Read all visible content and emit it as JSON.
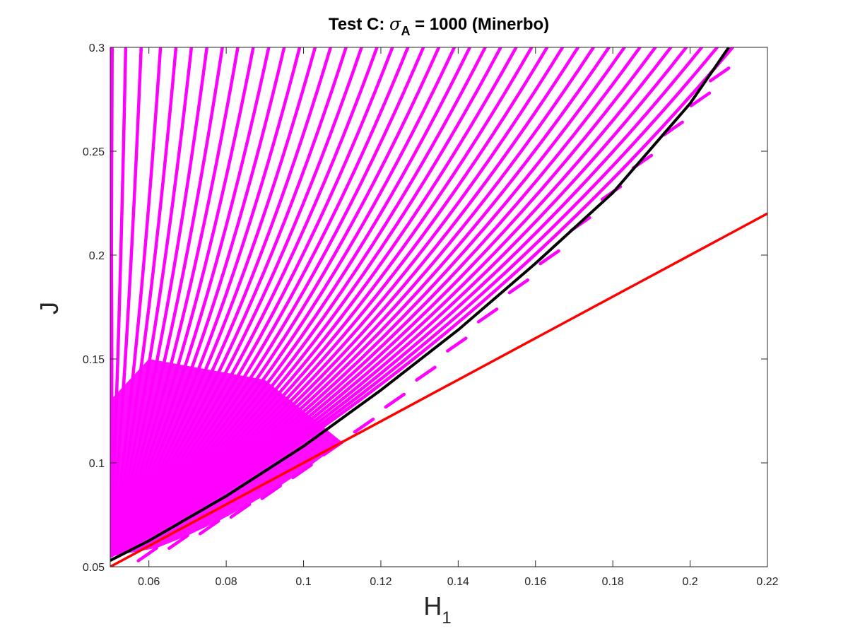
{
  "chart_data": {
    "type": "line",
    "title": {
      "prefix": "Test C: ",
      "symbol": "σ",
      "subscript": "A",
      "suffix": " = 1000 (Minerbo)"
    },
    "xlabel": {
      "main": "H",
      "sub": "1"
    },
    "ylabel": "J",
    "xlim": [
      0.05,
      0.22
    ],
    "ylim": [
      0.05,
      0.3
    ],
    "xticks": [
      0.06,
      0.08,
      0.1,
      0.12,
      0.14,
      0.16,
      0.18,
      0.2,
      0.22
    ],
    "xtick_labels": [
      "0.06",
      "0.08",
      "0.1",
      "0.12",
      "0.14",
      "0.16",
      "0.18",
      "0.2",
      "0.22"
    ],
    "yticks": [
      0.05,
      0.1,
      0.15,
      0.2,
      0.25,
      0.3
    ],
    "ytick_labels": [
      "0.05",
      "0.1",
      "0.15",
      "0.2",
      "0.25",
      "0.3"
    ],
    "grid": false,
    "colors": {
      "scatter": "#ff00ff",
      "curve": "#000000",
      "line": "#ff0000",
      "axes": "#262626"
    },
    "series": [
      {
        "kind": "line",
        "color": "#ff0000",
        "x": [
          0.05,
          0.22
        ],
        "y": [
          0.05,
          0.22
        ]
      },
      {
        "kind": "curve",
        "color": "#000000",
        "x": [
          0.05,
          0.06,
          0.08,
          0.1,
          0.12,
          0.14,
          0.16,
          0.18,
          0.2,
          0.21
        ],
        "y": [
          0.053,
          0.0625,
          0.084,
          0.108,
          0.135,
          0.164,
          0.196,
          0.23,
          0.273,
          0.3
        ]
      },
      {
        "kind": "scatter-fan",
        "color": "#ff00ff",
        "tip_x": 0.05,
        "tip_y": 0.055,
        "end_x": [
          0.0505,
          0.054,
          0.058,
          0.063,
          0.067,
          0.071,
          0.075,
          0.079,
          0.083,
          0.087,
          0.091,
          0.095,
          0.099,
          0.103,
          0.107,
          0.111,
          0.115,
          0.119,
          0.123,
          0.127,
          0.131,
          0.135,
          0.139,
          0.143,
          0.147,
          0.151,
          0.155,
          0.159,
          0.163,
          0.167,
          0.171,
          0.175,
          0.179,
          0.183,
          0.187,
          0.191,
          0.195,
          0.199,
          0.203,
          0.207,
          0.211
        ],
        "end_y": [
          0.3,
          0.3,
          0.3,
          0.3,
          0.3,
          0.3,
          0.3,
          0.3,
          0.3,
          0.3,
          0.3,
          0.3,
          0.3,
          0.3,
          0.3,
          0.3,
          0.3,
          0.3,
          0.3,
          0.3,
          0.3,
          0.3,
          0.3,
          0.3,
          0.3,
          0.3,
          0.3,
          0.3,
          0.3,
          0.3,
          0.3,
          0.3,
          0.3,
          0.3,
          0.3,
          0.3,
          0.3,
          0.3,
          0.3,
          0.3,
          0.3
        ],
        "left_edge_y": [
          0.27,
          0.255,
          0.24,
          0.225,
          0.21,
          0.195,
          0.18,
          0.165,
          0.15,
          0.135,
          0.125,
          0.115,
          0.105,
          0.095,
          0.085,
          0.075,
          0.065
        ],
        "lower_tail_x": [
          0.21,
          0.205,
          0.198,
          0.19,
          0.182,
          0.174,
          0.166,
          0.158,
          0.15,
          0.142,
          0.134,
          0.126,
          0.118,
          0.11,
          0.102,
          0.094,
          0.086,
          0.078,
          0.07,
          0.062
        ],
        "lower_tail_y": [
          0.29,
          0.278,
          0.264,
          0.248,
          0.233,
          0.218,
          0.202,
          0.188,
          0.174,
          0.16,
          0.146,
          0.133,
          0.121,
          0.11,
          0.099,
          0.089,
          0.08,
          0.072,
          0.065,
          0.059
        ]
      }
    ]
  }
}
